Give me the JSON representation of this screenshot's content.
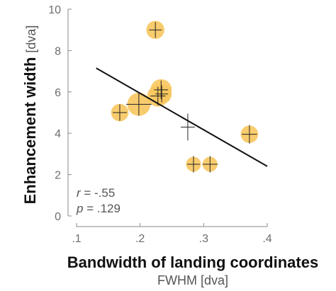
{
  "chart_data": {
    "type": "scatter",
    "xlabel": "Bandwidth of landing coordinates",
    "xlabel_unit": "FWHM [dva]",
    "ylabel": "Enhancement width",
    "ylabel_unit": "[dva]",
    "xlim": [
      0.1,
      0.4
    ],
    "ylim": [
      0,
      10
    ],
    "xticks": [
      0.1,
      0.2,
      0.3,
      0.4
    ],
    "xtick_labels": [
      ".1",
      ".2",
      ".3",
      ".4"
    ],
    "yticks": [
      0,
      2,
      4,
      6,
      8,
      10
    ],
    "ytick_labels": [
      "0",
      "2",
      "4",
      "6",
      "8",
      "10"
    ],
    "grid": false,
    "marker_color": "#f7c75e",
    "errorbar_color": "#222222",
    "points": [
      {
        "x": 0.224,
        "y": 9.0,
        "xerr": 0.01,
        "yerr": 0.38,
        "size": 0.75
      },
      {
        "x": 0.168,
        "y": 5.0,
        "xerr": 0.011,
        "yerr": 0.4,
        "size": 0.7
      },
      {
        "x": 0.198,
        "y": 5.4,
        "xerr": 0.02,
        "yerr": 0.55,
        "size": 1.15
      },
      {
        "x": 0.228,
        "y": 5.8,
        "xerr": 0.012,
        "yerr": 0.45,
        "size": 1.0
      },
      {
        "x": 0.233,
        "y": 6.1,
        "xerr": 0.011,
        "yerr": 0.45,
        "size": 1.0
      },
      {
        "x": 0.234,
        "y": 5.9,
        "xerr": 0.01,
        "yerr": 0.4,
        "size": 0.9
      },
      {
        "x": 0.275,
        "y": 4.3,
        "xerr": 0.011,
        "yerr": 0.65,
        "size": 0.0
      },
      {
        "x": 0.284,
        "y": 2.5,
        "xerr": 0.01,
        "yerr": 0.4,
        "size": 0.5
      },
      {
        "x": 0.31,
        "y": 2.5,
        "xerr": 0.012,
        "yerr": 0.4,
        "size": 0.5
      },
      {
        "x": 0.372,
        "y": 3.95,
        "xerr": 0.012,
        "yerr": 0.45,
        "size": 0.7
      }
    ],
    "regression_line": {
      "x": [
        0.131,
        0.4
      ],
      "y": [
        7.15,
        2.4
      ]
    },
    "stats": {
      "r_symbol": "r",
      "r_value": " = -.55",
      "p_symbol": "p",
      "p_value": " = .129"
    }
  }
}
